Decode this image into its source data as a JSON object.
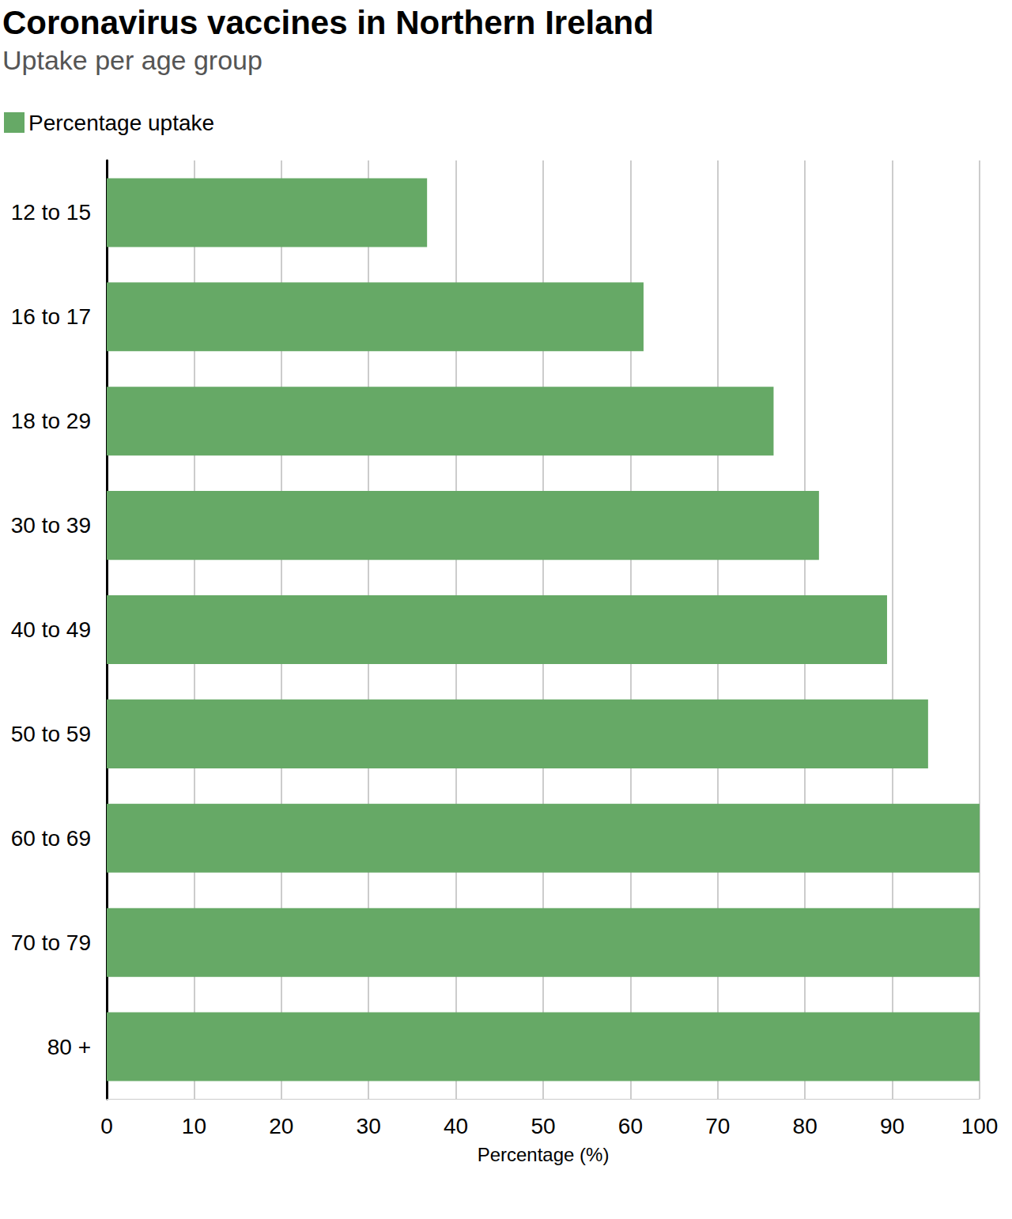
{
  "chart_data": {
    "type": "bar",
    "orientation": "horizontal",
    "title": "Coronavirus vaccines in Northern Ireland",
    "subtitle": "Uptake per age group",
    "x_label": "Percentage (%)",
    "categories": [
      "12 to 15",
      "16 to 17",
      "18 to 29",
      "30 to 39",
      "40 to 49",
      "50 to 59",
      "60 to 69",
      "70 to 79",
      "80 +"
    ],
    "series": [
      {
        "name": "Percentage uptake",
        "color": "#66a966",
        "values": [
          36.7,
          61.5,
          76.4,
          81.6,
          89.4,
          94.1,
          100,
          100,
          100
        ]
      }
    ],
    "xlim": [
      0,
      100
    ],
    "xticks": [
      0,
      10,
      20,
      30,
      40,
      50,
      60,
      70,
      80,
      90,
      100
    ],
    "grid": true,
    "legend": "top-left"
  }
}
